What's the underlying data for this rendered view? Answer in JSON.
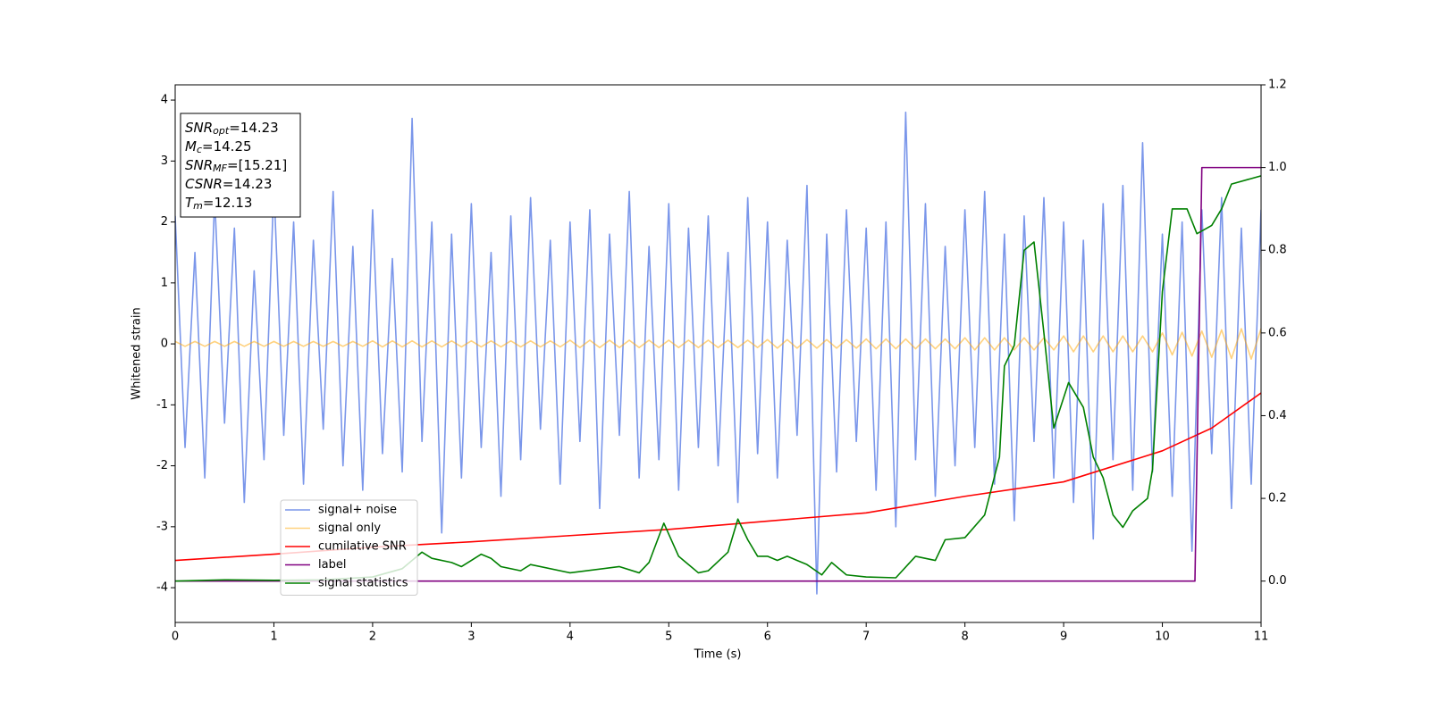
{
  "chart_data": {
    "type": "line",
    "xlabel": "Time (s)",
    "ylabel": "Whitened strain",
    "annotations": [
      {
        "symbol": "SNR",
        "sub": "opt",
        "text": "=14.23"
      },
      {
        "symbol": "M",
        "sub": "c",
        "text": "=14.25"
      },
      {
        "symbol": "SNR",
        "sub": "MF",
        "text": "=[15.21]"
      },
      {
        "symbol": "CSNR",
        "text": "=14.23"
      },
      {
        "symbol": "T",
        "sub": "m",
        "text": "=12.13"
      }
    ],
    "xlim": [
      0,
      11
    ],
    "xticks": [
      0,
      1,
      2,
      3,
      4,
      5,
      6,
      7,
      8,
      9,
      10,
      11
    ],
    "ylim": [
      -4.57,
      4.25
    ],
    "yticks": [
      -4,
      -3,
      -2,
      -1,
      0,
      1,
      2,
      3,
      4
    ],
    "y2lim": [
      -0.1,
      1.2
    ],
    "y2ticks": [
      {
        "value": 0,
        "label": "0.0"
      },
      {
        "value": 0.2,
        "label": "0.2"
      },
      {
        "value": 0.4,
        "label": "0.4"
      },
      {
        "value": 0.6,
        "label": "0.6"
      },
      {
        "value": 0.8,
        "label": "0.8"
      },
      {
        "value": 1,
        "label": "1.0"
      },
      {
        "value": 1.2,
        "label": "1.2"
      }
    ],
    "legend_loc": "lower left",
    "x": [
      0,
      0.1,
      0.2,
      0.3,
      0.4,
      0.5,
      0.6,
      0.7,
      0.8,
      0.9,
      1,
      1.1,
      1.2,
      1.3,
      1.4,
      1.5,
      1.6,
      1.7,
      1.8,
      1.9,
      2,
      2.1,
      2.2,
      2.3,
      2.4,
      2.5,
      2.6,
      2.7,
      2.8,
      2.9,
      3,
      3.1,
      3.2,
      3.3,
      3.4,
      3.5,
      3.6,
      3.7,
      3.8,
      3.9,
      4,
      4.1,
      4.2,
      4.3,
      4.4,
      4.5,
      4.6,
      4.7,
      4.8,
      4.9,
      5,
      5.1,
      5.2,
      5.3,
      5.4,
      5.5,
      5.6,
      5.7,
      5.8,
      5.9,
      6,
      6.1,
      6.2,
      6.3,
      6.4,
      6.5,
      6.6,
      6.7,
      6.8,
      6.9,
      7,
      7.1,
      7.2,
      7.3,
      7.4,
      7.5,
      7.6,
      7.7,
      7.8,
      7.9,
      8,
      8.1,
      8.2,
      8.3,
      8.4,
      8.5,
      8.6,
      8.7,
      8.8,
      8.9,
      9,
      9.1,
      9.2,
      9.3,
      9.4,
      9.5,
      9.6,
      9.7,
      9.8,
      9.9,
      10,
      10.1,
      10.2,
      10.3,
      10.4,
      10.5,
      10.6,
      10.7,
      10.8,
      10.9,
      11
    ],
    "series": [
      {
        "name": "signal+ noise",
        "color": "#4169e1",
        "opacity": 0.7,
        "values": [
          2.1,
          -1.7,
          1.5,
          -2.2,
          2.4,
          -1.3,
          1.9,
          -2.6,
          1.2,
          -1.9,
          2.6,
          -1.5,
          2.0,
          -2.3,
          1.7,
          -1.4,
          2.5,
          -2.0,
          1.6,
          -2.4,
          2.2,
          -1.8,
          1.4,
          -2.1,
          3.7,
          -1.6,
          2.0,
          -3.1,
          1.8,
          -2.2,
          2.3,
          -1.7,
          1.5,
          -2.5,
          2.1,
          -1.9,
          2.4,
          -1.4,
          1.7,
          -2.3,
          2.0,
          -1.6,
          2.2,
          -2.7,
          1.8,
          -1.5,
          2.5,
          -2.2,
          1.6,
          -1.9,
          2.3,
          -2.4,
          1.9,
          -1.7,
          2.1,
          -2.0,
          1.5,
          -2.6,
          2.4,
          -1.8,
          2.0,
          -2.2,
          1.7,
          -1.5,
          2.6,
          -4.1,
          1.8,
          -2.1,
          2.2,
          -1.6,
          1.9,
          -2.4,
          2.0,
          -3.0,
          3.8,
          -1.9,
          2.3,
          -2.5,
          1.6,
          -2.0,
          2.2,
          -1.7,
          2.5,
          -2.3,
          1.8,
          -2.9,
          2.1,
          -1.6,
          2.4,
          -2.2,
          2.0,
          -2.6,
          1.7,
          -3.2,
          2.3,
          -1.9,
          2.6,
          -2.4,
          3.3,
          -2.1,
          1.8,
          -2.5,
          2.0,
          -3.4,
          2.2,
          -1.8,
          2.4,
          -2.7,
          1.9,
          -2.3,
          2.2
        ]
      },
      {
        "name": "signal only",
        "color": "#ffa500",
        "opacity": 0.5,
        "values": [
          0.04,
          -0.04,
          0.04,
          -0.04,
          0.04,
          -0.04,
          0.04,
          -0.04,
          0.04,
          -0.04,
          0.04,
          -0.04,
          0.04,
          -0.04,
          0.04,
          -0.04,
          0.04,
          -0.04,
          0.04,
          -0.04,
          0.05,
          -0.05,
          0.05,
          -0.05,
          0.05,
          -0.05,
          0.05,
          -0.05,
          0.05,
          -0.05,
          0.05,
          -0.05,
          0.05,
          -0.05,
          0.05,
          -0.05,
          0.05,
          -0.05,
          0.05,
          -0.05,
          0.06,
          -0.06,
          0.06,
          -0.06,
          0.06,
          -0.06,
          0.06,
          -0.06,
          0.06,
          -0.06,
          0.06,
          -0.06,
          0.06,
          -0.06,
          0.06,
          -0.06,
          0.06,
          -0.06,
          0.06,
          -0.06,
          0.07,
          -0.07,
          0.07,
          -0.07,
          0.07,
          -0.07,
          0.07,
          -0.07,
          0.07,
          -0.07,
          0.08,
          -0.08,
          0.08,
          -0.08,
          0.08,
          -0.08,
          0.08,
          -0.08,
          0.08,
          -0.08,
          0.1,
          -0.1,
          0.1,
          -0.1,
          0.1,
          -0.1,
          0.1,
          -0.1,
          0.1,
          -0.1,
          0.13,
          -0.13,
          0.13,
          -0.13,
          0.13,
          -0.13,
          0.13,
          -0.13,
          0.13,
          -0.13,
          0.18,
          -0.18,
          0.19,
          -0.2,
          0.21,
          -0.22,
          0.23,
          -0.24,
          0.25,
          -0.25,
          0.25
        ]
      },
      {
        "name": "cumilative SNR",
        "color": "#ff0000",
        "axis": "y2",
        "x": [
          0,
          1,
          2,
          3,
          4,
          5,
          6,
          7,
          8,
          9,
          10,
          10.5,
          11
        ],
        "values": [
          0.05,
          0.065,
          0.082,
          0.095,
          0.11,
          0.125,
          0.145,
          0.165,
          0.205,
          0.24,
          0.315,
          0.37,
          0.455
        ]
      },
      {
        "name": "label",
        "color": "#800080",
        "axis": "y2",
        "x": [
          0,
          10.33,
          10.4,
          11
        ],
        "values": [
          0,
          0,
          1,
          1
        ]
      },
      {
        "name": "signal statistics",
        "color": "#008000",
        "axis": "y2",
        "x": [
          0,
          0.5,
          1,
          1.5,
          2,
          2.3,
          2.5,
          2.6,
          2.8,
          2.9,
          3.0,
          3.1,
          3.2,
          3.3,
          3.5,
          3.6,
          4,
          4.5,
          4.7,
          4.8,
          4.95,
          5.1,
          5.3,
          5.4,
          5.6,
          5.7,
          5.8,
          5.9,
          6.0,
          6.1,
          6.2,
          6.4,
          6.55,
          6.65,
          6.8,
          7.0,
          7.3,
          7.5,
          7.7,
          7.8,
          8.0,
          8.2,
          8.35,
          8.4,
          8.5,
          8.6,
          8.7,
          8.8,
          8.9,
          9.05,
          9.2,
          9.3,
          9.4,
          9.5,
          9.6,
          9.7,
          9.85,
          9.9,
          10.0,
          10.1,
          10.25,
          10.35,
          10.5,
          10.6,
          10.7,
          11
        ],
        "values": [
          0,
          0.003,
          0.002,
          0.003,
          0.01,
          0.03,
          0.07,
          0.055,
          0.045,
          0.035,
          0.05,
          0.065,
          0.055,
          0.035,
          0.025,
          0.04,
          0.02,
          0.035,
          0.02,
          0.045,
          0.14,
          0.06,
          0.02,
          0.025,
          0.07,
          0.15,
          0.1,
          0.06,
          0.06,
          0.05,
          0.06,
          0.04,
          0.015,
          0.045,
          0.015,
          0.01,
          0.008,
          0.06,
          0.05,
          0.1,
          0.105,
          0.16,
          0.3,
          0.52,
          0.57,
          0.8,
          0.82,
          0.6,
          0.37,
          0.48,
          0.42,
          0.3,
          0.25,
          0.16,
          0.13,
          0.17,
          0.2,
          0.27,
          0.7,
          0.9,
          0.9,
          0.84,
          0.86,
          0.9,
          0.96,
          0.98
        ]
      }
    ]
  }
}
